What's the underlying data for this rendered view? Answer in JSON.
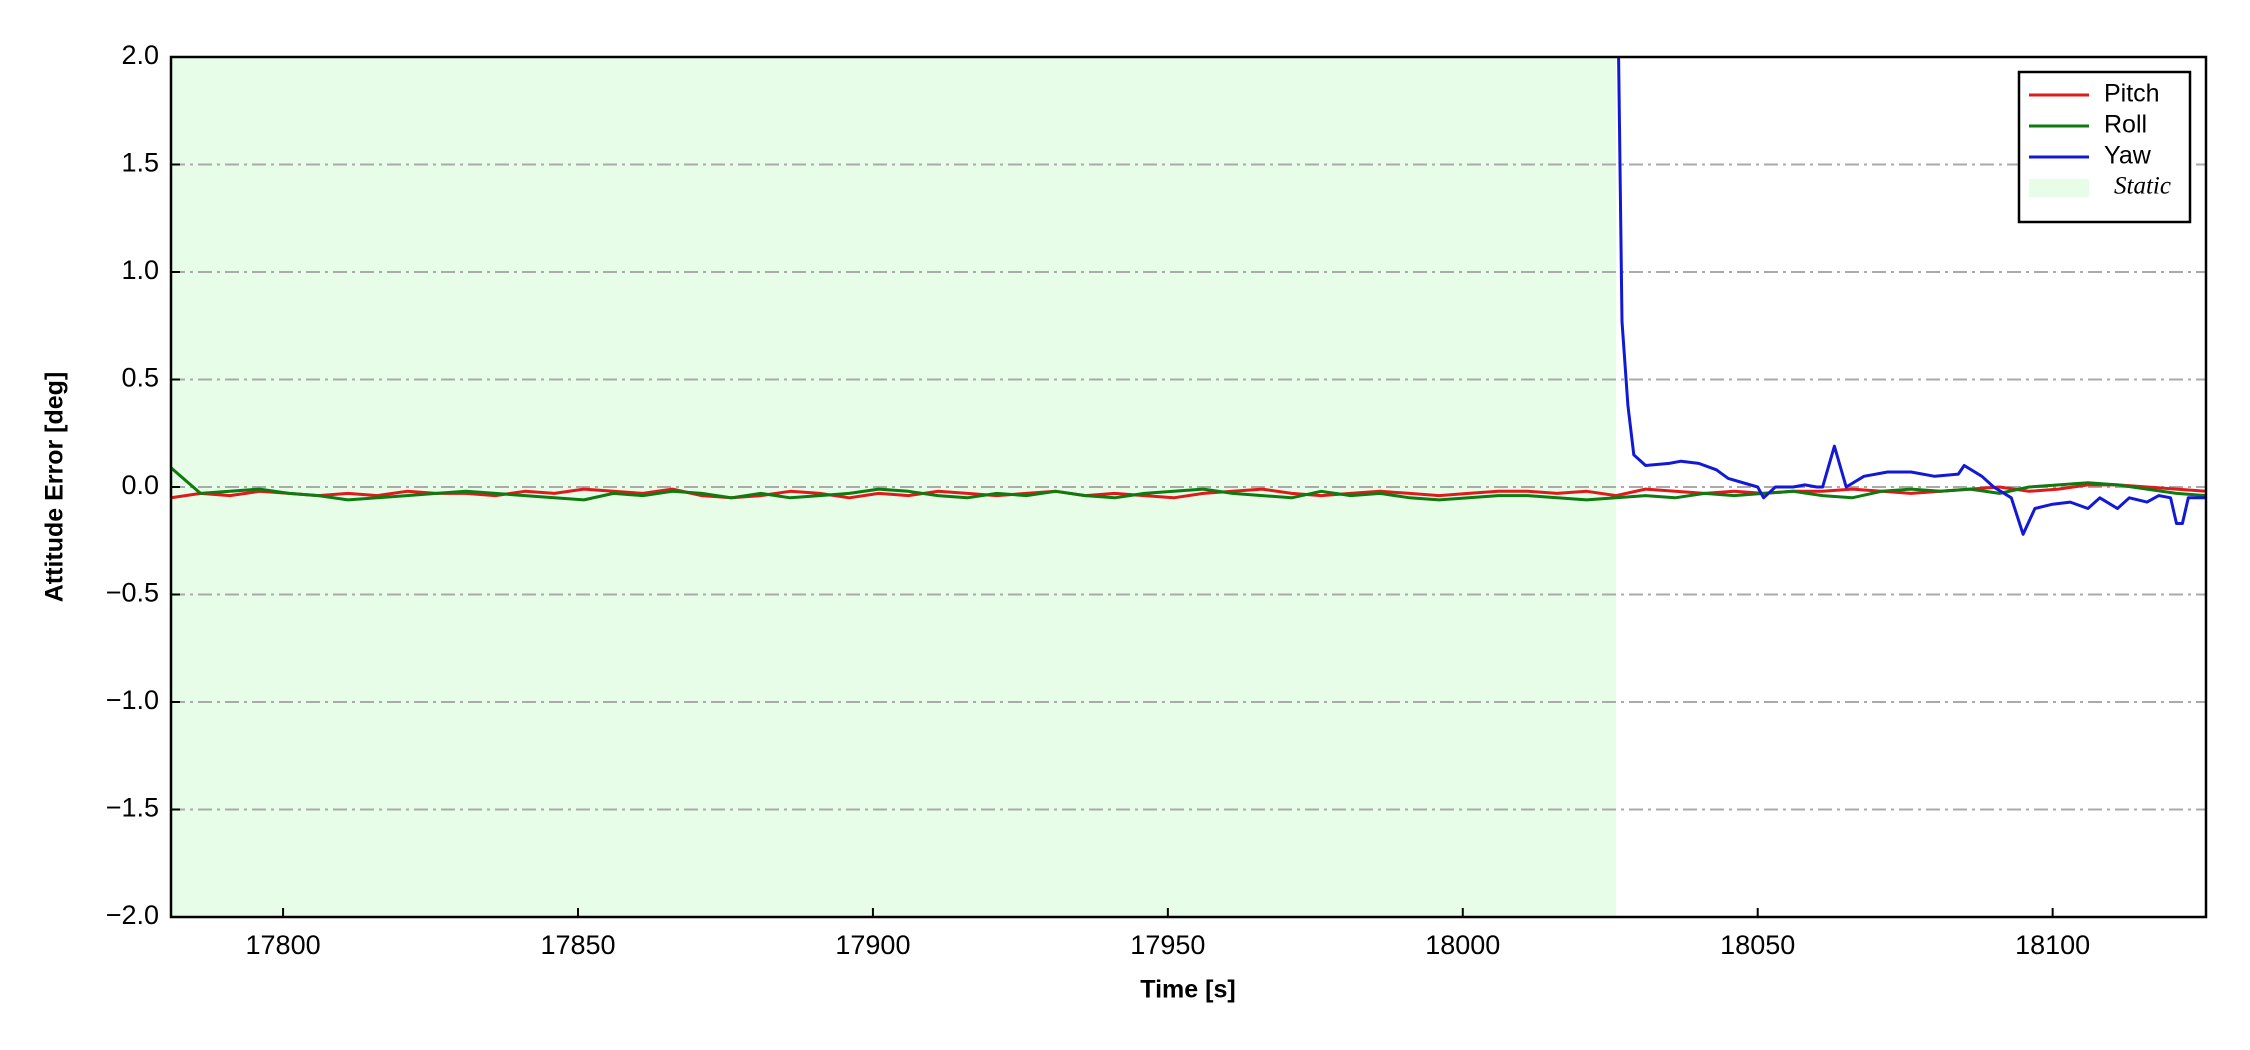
{
  "chart_data": {
    "type": "line",
    "x_label": "Time [s]",
    "y_label": "Attitude Error [deg]",
    "xlim": [
      17781,
      18126
    ],
    "ylim": [
      -2.0,
      2.0
    ],
    "xticks": [
      17800,
      17850,
      17900,
      17950,
      18000,
      18050,
      18100
    ],
    "yticks": [
      {
        "value": -2.0,
        "label": "−2.0"
      },
      {
        "value": -1.5,
        "label": "−1.5"
      },
      {
        "value": -1.0,
        "label": "−1.0"
      },
      {
        "value": -0.5,
        "label": "−0.5"
      },
      {
        "value": 0.0,
        "label": "0.0"
      },
      {
        "value": 0.5,
        "label": "0.5"
      },
      {
        "value": 1.0,
        "label": "1.0"
      },
      {
        "value": 1.5,
        "label": "1.5"
      },
      {
        "value": 2.0,
        "label": "2.0"
      }
    ],
    "grid": true,
    "legend": "upper right",
    "spans": [
      {
        "label": "Static",
        "x0": 17781,
        "x1": 18026,
        "color": "#e8fde8"
      }
    ],
    "series": [
      {
        "name": "Pitch",
        "color": "#e0191b",
        "x": [
          17781,
          17786,
          17791,
          17796,
          17801,
          17806,
          17811,
          17816,
          17821,
          17826,
          17831,
          17836,
          17841,
          17846,
          17851,
          17856,
          17861,
          17866,
          17871,
          17876,
          17881,
          17886,
          17891,
          17896,
          17901,
          17906,
          17911,
          17916,
          17921,
          17926,
          17931,
          17936,
          17941,
          17946,
          17951,
          17956,
          17961,
          17966,
          17971,
          17976,
          17981,
          17986,
          17991,
          17996,
          18001,
          18006,
          18011,
          18016,
          18021,
          18026,
          18031,
          18036,
          18041,
          18046,
          18051,
          18056,
          18061,
          18066,
          18071,
          18076,
          18081,
          18086,
          18091,
          18096,
          18101,
          18106,
          18111,
          18116,
          18121,
          18126
        ],
        "values": [
          -0.05,
          -0.03,
          -0.04,
          -0.02,
          -0.03,
          -0.04,
          -0.03,
          -0.04,
          -0.02,
          -0.03,
          -0.03,
          -0.04,
          -0.02,
          -0.03,
          -0.01,
          -0.02,
          -0.03,
          -0.01,
          -0.04,
          -0.05,
          -0.04,
          -0.02,
          -0.03,
          -0.05,
          -0.03,
          -0.04,
          -0.02,
          -0.03,
          -0.04,
          -0.03,
          -0.02,
          -0.04,
          -0.03,
          -0.04,
          -0.05,
          -0.03,
          -0.02,
          -0.01,
          -0.03,
          -0.04,
          -0.03,
          -0.02,
          -0.03,
          -0.04,
          -0.03,
          -0.02,
          -0.02,
          -0.03,
          -0.02,
          -0.04,
          -0.01,
          -0.02,
          -0.03,
          -0.02,
          -0.03,
          -0.02,
          -0.02,
          -0.01,
          -0.02,
          -0.03,
          -0.02,
          -0.01,
          0.0,
          -0.02,
          -0.01,
          0.01,
          0.01,
          0.0,
          -0.01,
          -0.02
        ]
      },
      {
        "name": "Roll",
        "color": "#0f7a0f",
        "x": [
          17781,
          17786,
          17791,
          17796,
          17801,
          17806,
          17811,
          17816,
          17821,
          17826,
          17831,
          17836,
          17841,
          17846,
          17851,
          17856,
          17861,
          17866,
          17871,
          17876,
          17881,
          17886,
          17891,
          17896,
          17901,
          17906,
          17911,
          17916,
          17921,
          17926,
          17931,
          17936,
          17941,
          17946,
          17951,
          17956,
          17961,
          17966,
          17971,
          17976,
          17981,
          17986,
          17991,
          17996,
          18001,
          18006,
          18011,
          18016,
          18021,
          18026,
          18031,
          18036,
          18041,
          18046,
          18051,
          18056,
          18061,
          18066,
          18071,
          18076,
          18081,
          18086,
          18091,
          18096,
          18101,
          18106,
          18111,
          18116,
          18121,
          18126
        ],
        "values": [
          0.09,
          -0.03,
          -0.02,
          -0.01,
          -0.03,
          -0.04,
          -0.06,
          -0.05,
          -0.04,
          -0.03,
          -0.02,
          -0.03,
          -0.04,
          -0.05,
          -0.06,
          -0.03,
          -0.04,
          -0.02,
          -0.03,
          -0.05,
          -0.03,
          -0.05,
          -0.04,
          -0.03,
          -0.01,
          -0.02,
          -0.04,
          -0.05,
          -0.03,
          -0.04,
          -0.02,
          -0.04,
          -0.05,
          -0.03,
          -0.02,
          -0.01,
          -0.03,
          -0.04,
          -0.05,
          -0.02,
          -0.04,
          -0.03,
          -0.05,
          -0.06,
          -0.05,
          -0.04,
          -0.04,
          -0.05,
          -0.06,
          -0.05,
          -0.04,
          -0.05,
          -0.03,
          -0.04,
          -0.03,
          -0.02,
          -0.04,
          -0.05,
          -0.02,
          -0.01,
          -0.02,
          -0.01,
          -0.03,
          0.0,
          0.01,
          0.02,
          0.01,
          -0.01,
          -0.03,
          -0.04
        ]
      },
      {
        "name": "Yaw",
        "color": "#1219d6",
        "x": [
          18026,
          18027,
          18028,
          18029,
          18031,
          18035,
          18037,
          18040,
          18043,
          18045,
          18050,
          18051,
          18053,
          18056,
          18058,
          18060,
          18061,
          18063,
          18065,
          18068,
          18072,
          18076,
          18080,
          18084,
          18085,
          18088,
          18090,
          18093,
          18095,
          18097,
          18100,
          18103,
          18106,
          18108,
          18111,
          18113,
          18116,
          18118,
          18120,
          18121,
          18122,
          18123,
          18126
        ],
        "values": [
          2.9,
          0.77,
          0.38,
          0.15,
          0.1,
          0.11,
          0.12,
          0.11,
          0.08,
          0.04,
          0.0,
          -0.05,
          0.0,
          0.0,
          0.01,
          0.0,
          0.0,
          0.19,
          0.0,
          0.05,
          0.07,
          0.07,
          0.05,
          0.06,
          0.1,
          0.05,
          0.0,
          -0.05,
          -0.22,
          -0.1,
          -0.08,
          -0.07,
          -0.1,
          -0.05,
          -0.1,
          -0.05,
          -0.07,
          -0.04,
          -0.05,
          -0.17,
          -0.17,
          -0.05,
          -0.05
        ]
      }
    ]
  }
}
